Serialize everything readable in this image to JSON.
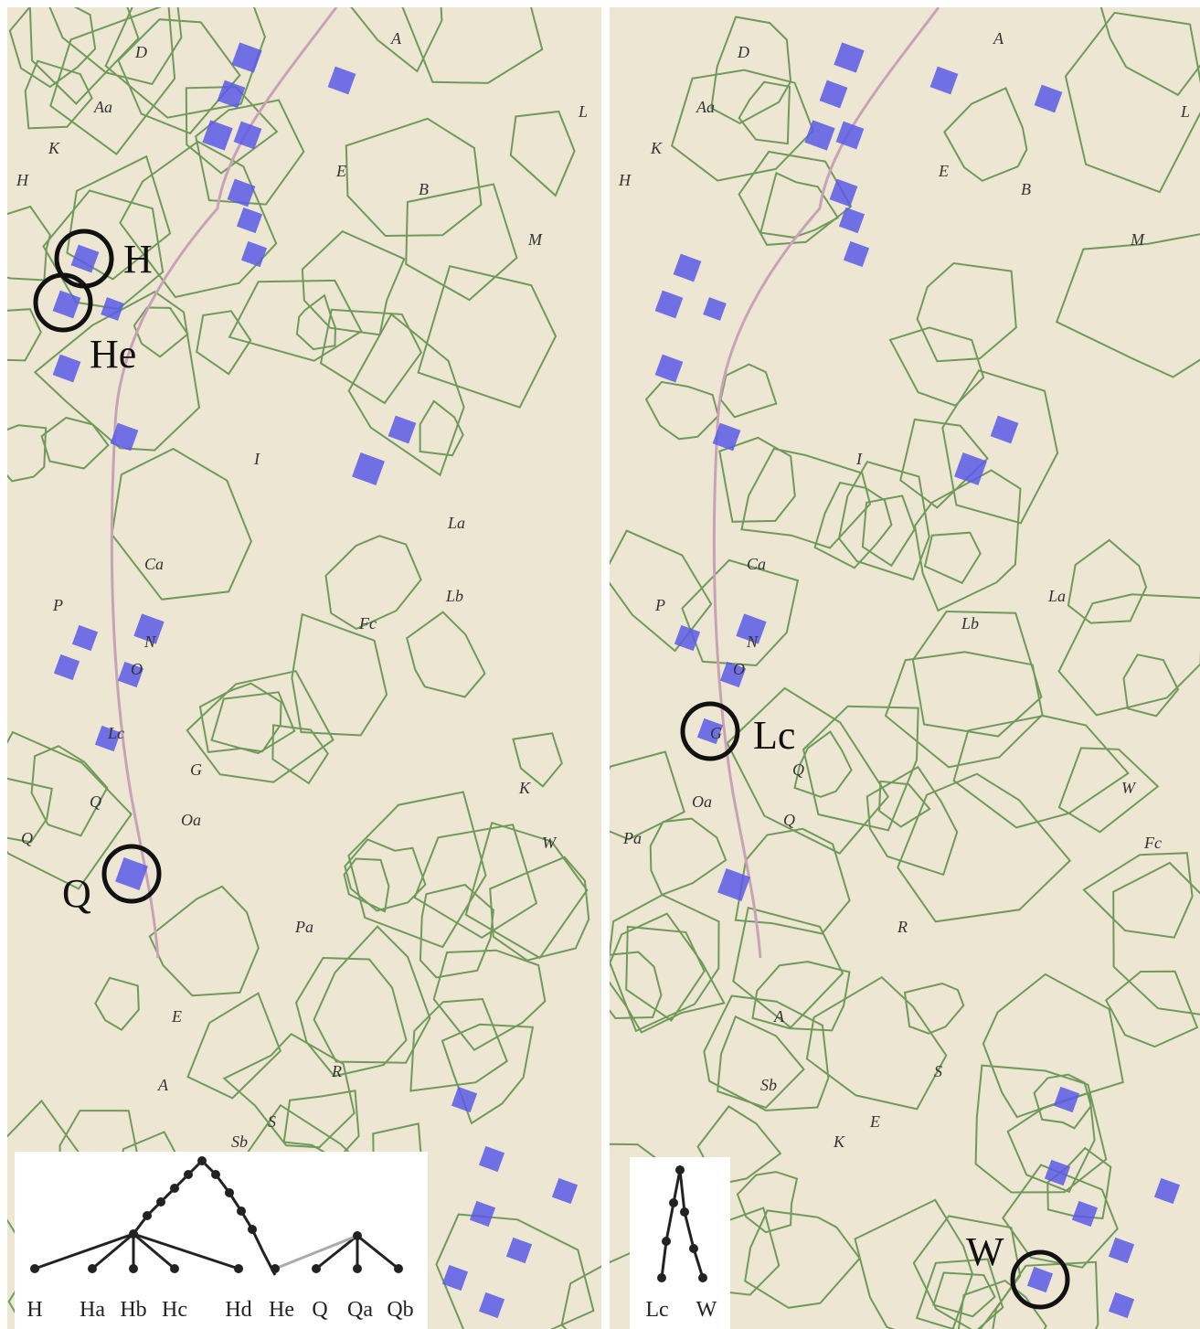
{
  "left_panel": {
    "highlighted_sites": [
      {
        "label": "H"
      },
      {
        "label": "He"
      },
      {
        "label": "Q"
      }
    ],
    "tree_leaves": [
      "H",
      "Ha",
      "Hb",
      "Hc",
      "Hd",
      "He",
      "Q",
      "Qa",
      "Qb"
    ]
  },
  "right_panel": {
    "highlighted_sites": [
      {
        "label": "Lc"
      },
      {
        "label": "W"
      }
    ],
    "tree_leaves": [
      "Lc",
      "W"
    ]
  },
  "map_parcel_letters": {
    "left": [
      "D",
      "A",
      "Aa",
      "K",
      "H",
      "E",
      "B",
      "M",
      "L",
      "I",
      "Ca",
      "P",
      "N",
      "O",
      "Lc",
      "G",
      "Q",
      "Oa",
      "Q",
      "Pa",
      "R",
      "S",
      "E",
      "A",
      "Sb",
      "K",
      "W",
      "Fc",
      "Lb",
      "La"
    ],
    "right": [
      "D",
      "A",
      "Aa",
      "K",
      "H",
      "E",
      "B",
      "M",
      "L",
      "I",
      "Ca",
      "P",
      "N",
      "O",
      "G",
      "Q",
      "Oa",
      "Q",
      "Pa",
      "R",
      "S",
      "E",
      "A",
      "Sb",
      "K",
      "W",
      "Fc",
      "Lb",
      "La"
    ]
  },
  "colors": {
    "map_background": "#ede6d3",
    "parcel_border": "#6f9a5a",
    "building": "#5a5ae8",
    "road": "#c9a2b8",
    "circle": "#111111",
    "tree_edge": "#222222",
    "tree_edge_faint": "#aaaaaa"
  }
}
